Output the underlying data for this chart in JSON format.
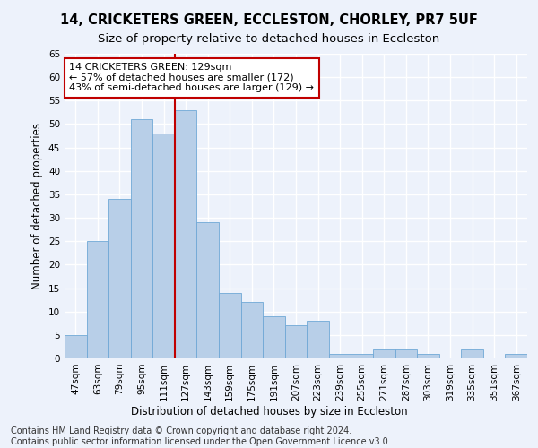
{
  "title": "14, CRICKETERS GREEN, ECCLESTON, CHORLEY, PR7 5UF",
  "subtitle": "Size of property relative to detached houses in Eccleston",
  "xlabel": "Distribution of detached houses by size in Eccleston",
  "ylabel": "Number of detached properties",
  "categories": [
    "47sqm",
    "63sqm",
    "79sqm",
    "95sqm",
    "111sqm",
    "127sqm",
    "143sqm",
    "159sqm",
    "175sqm",
    "191sqm",
    "207sqm",
    "223sqm",
    "239sqm",
    "255sqm",
    "271sqm",
    "287sqm",
    "303sqm",
    "319sqm",
    "335sqm",
    "351sqm",
    "367sqm"
  ],
  "values": [
    5,
    25,
    34,
    51,
    48,
    53,
    29,
    14,
    12,
    9,
    7,
    8,
    1,
    1,
    2,
    2,
    1,
    0,
    2,
    0,
    1
  ],
  "bar_color": "#b8cfe8",
  "bar_edge_color": "#6fa8d6",
  "highlight_bar_color": "#9bbfe0",
  "highlight_index": 5,
  "highlight_color": "#c00000",
  "ylim": [
    0,
    65
  ],
  "yticks": [
    0,
    5,
    10,
    15,
    20,
    25,
    30,
    35,
    40,
    45,
    50,
    55,
    60,
    65
  ],
  "annotation_title": "14 CRICKETERS GREEN: 129sqm",
  "annotation_line1": "← 57% of detached houses are smaller (172)",
  "annotation_line2": "43% of semi-detached houses are larger (129) →",
  "footer_line1": "Contains HM Land Registry data © Crown copyright and database right 2024.",
  "footer_line2": "Contains public sector information licensed under the Open Government Licence v3.0.",
  "background_color": "#edf2fb",
  "grid_color": "#ffffff",
  "title_fontsize": 10.5,
  "subtitle_fontsize": 9.5,
  "axis_label_fontsize": 8.5,
  "tick_fontsize": 7.5,
  "annotation_fontsize": 8,
  "footer_fontsize": 7
}
